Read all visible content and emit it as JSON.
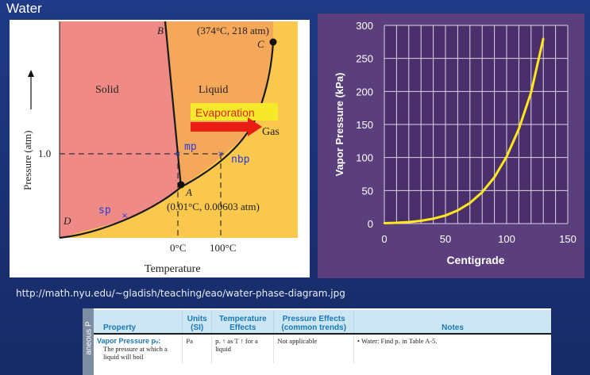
{
  "slide": {
    "title": "Water"
  },
  "phase_diagram": {
    "regions": {
      "solid": "Solid",
      "liquid": "Liquid",
      "gas": "Gas"
    },
    "points": {
      "a": "A",
      "b": "B",
      "c": "C",
      "d": "D"
    },
    "critical_point": "(374°C, 218 atm)",
    "triple_point": "(0.01°C, 0.00603 atm)",
    "ylabel": "Pressure (atm)",
    "xlabel": "Temperature",
    "y_tick": "1.0",
    "x_ticks": [
      "0°C",
      "100°C"
    ],
    "markers": {
      "mp": "mp",
      "nbp": "nbp",
      "sp": "sp"
    },
    "evaporation": "Evaporation",
    "colors": {
      "solid": "#ef8a86",
      "liquid": "#f6a85a",
      "gas": "#f9c84c",
      "curve": "#1a1a1a",
      "marker": "#2a3ad6",
      "arrow": "#e81e14"
    }
  },
  "chart_data": {
    "type": "line",
    "title": "",
    "xlabel": "Centigrade",
    "ylabel": "Vapor Pressure (kPa)",
    "xlim": [
      0,
      150
    ],
    "ylim": [
      0,
      300
    ],
    "x_ticks": [
      0,
      50,
      100,
      150
    ],
    "y_ticks": [
      0,
      50,
      100,
      150,
      200,
      250,
      300
    ],
    "grid": true,
    "series": [
      {
        "x": [
          0,
          10,
          20,
          30,
          40,
          50,
          60,
          70,
          80,
          90,
          100,
          110,
          120,
          130
        ],
        "y": [
          0.6,
          1.2,
          2.3,
          4.2,
          7.4,
          12.3,
          19.9,
          31.2,
          47.4,
          70.1,
          101.3,
          143.3,
          198.5,
          280
        ],
        "color": "#ffe81e"
      }
    ],
    "colors": {
      "background": "#5b3f7c",
      "plot_area": "#4b2f6b",
      "grid": "#dcd3ea"
    }
  },
  "source": {
    "url": "http://math.nyu.edu/~gladish/teaching/eao/water-phase-diagram.jpg"
  },
  "table": {
    "side_label": "aneous P",
    "headers": [
      "Property",
      "Units (SI)",
      "Temperature Effects",
      "Pressure Effects (common trends)",
      "Notes"
    ],
    "row": {
      "property_name": "Vapor Pressure pᵥ:",
      "property_desc": "The pressure at which a liquid will boil",
      "units": "Pa",
      "temperature": "pᵥ ↑ as T ↑ for a liquid",
      "pressure": "Not applicable",
      "notes": "• Water: Find pᵥ in Table A-5."
    }
  }
}
